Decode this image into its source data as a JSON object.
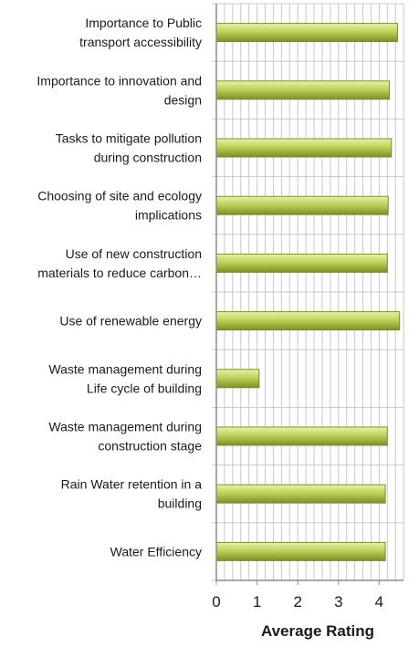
{
  "chart_data": {
    "type": "bar",
    "orientation": "horizontal",
    "title": "",
    "xlabel": "Average Rating",
    "ylabel": "",
    "xlim": [
      0,
      4.5
    ],
    "x_ticks": [
      "0",
      "1",
      "2",
      "3",
      "4"
    ],
    "grid": true,
    "legend": "none",
    "categories": [
      [
        "Importance to Public",
        "transport accessibility"
      ],
      [
        "Importance to innovation and",
        "design"
      ],
      [
        "Tasks to mitigate pollution",
        "during construction"
      ],
      [
        "Choosing of site and ecology",
        "implications"
      ],
      [
        "Use of new construction",
        "materials to reduce carbon…"
      ],
      [
        "Use of renewable energy"
      ],
      [
        "Waste management during",
        "Life cycle of building"
      ],
      [
        "Waste management during",
        "construction stage"
      ],
      [
        "Rain Water retention in a",
        "building"
      ],
      [
        "Water Efficiency"
      ]
    ],
    "values": [
      4.45,
      4.25,
      4.3,
      4.22,
      4.2,
      4.5,
      1.05,
      4.2,
      4.15,
      4.15
    ],
    "colors": {
      "bar_light": "#e9f1b0",
      "bar_mid": "#bfd25a",
      "bar_dark": "#7c8f25",
      "grid": "#c8c8c8",
      "axis": "#8c8c8c"
    }
  }
}
